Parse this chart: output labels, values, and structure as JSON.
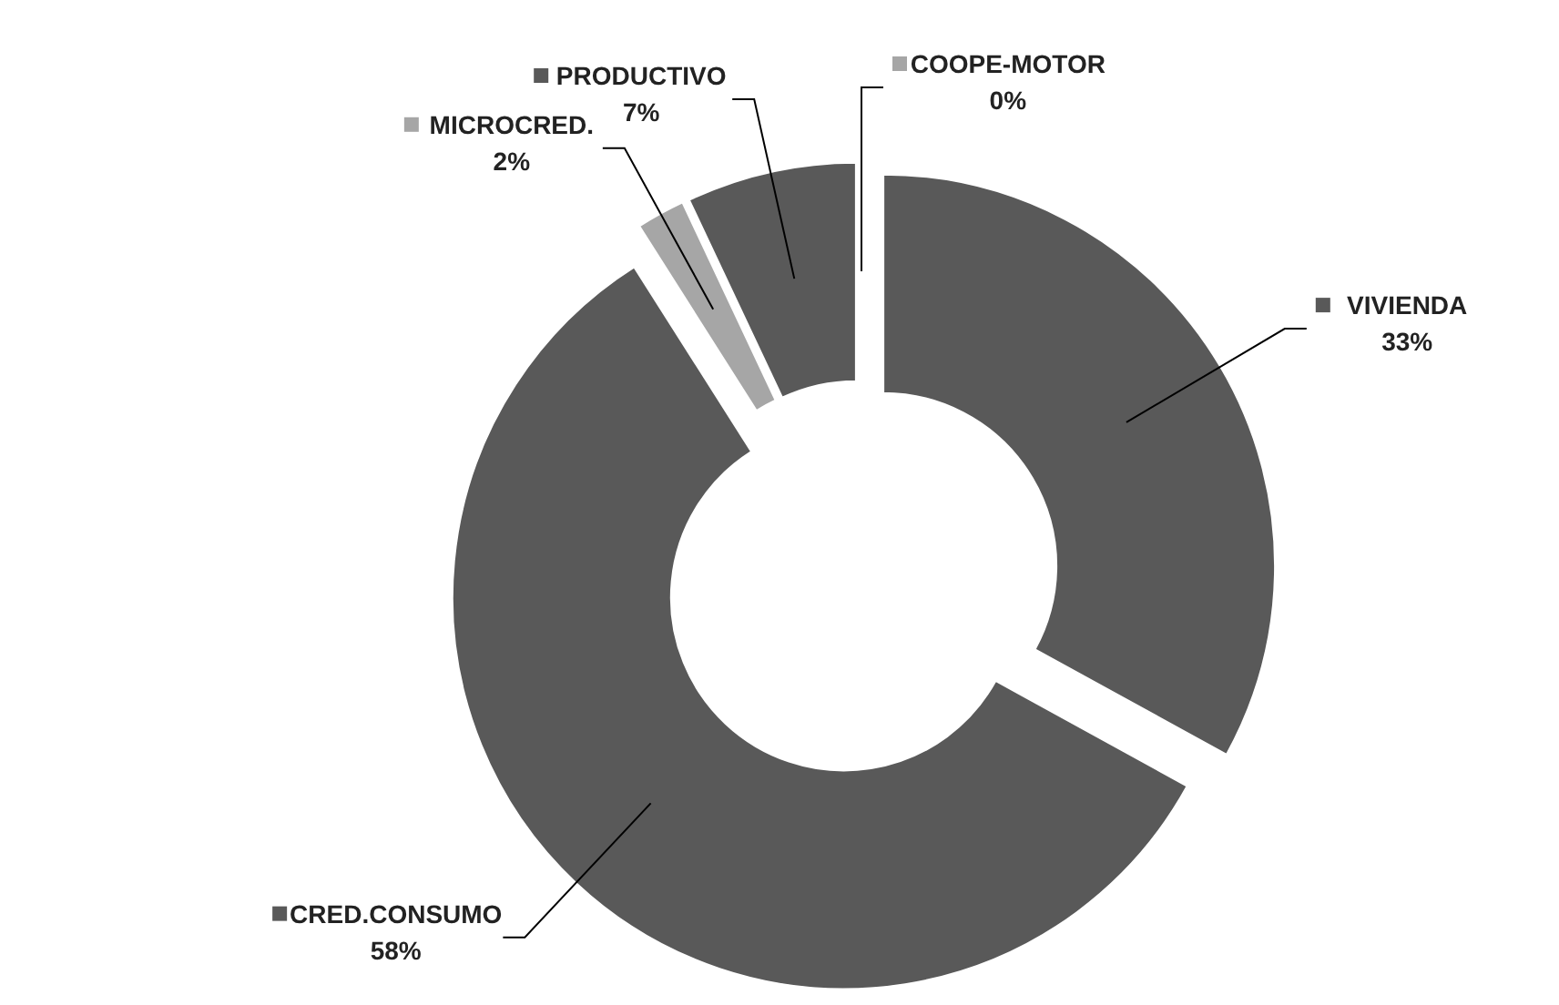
{
  "chart_data": {
    "type": "donut",
    "categories": [
      "VIVIENDA",
      "CRED.CONSUMO",
      "MICROCRED.",
      "PRODUCTIVO",
      "COOPE-MOTOR"
    ],
    "values": [
      33,
      58,
      2,
      7,
      0
    ],
    "value_labels": [
      "33%",
      "58%",
      "2%",
      "7%",
      "0%"
    ],
    "legend": true,
    "colors": [
      "#595959",
      "#595959",
      "#a6a6a6",
      "#595959",
      "#a6a6a6"
    ]
  }
}
